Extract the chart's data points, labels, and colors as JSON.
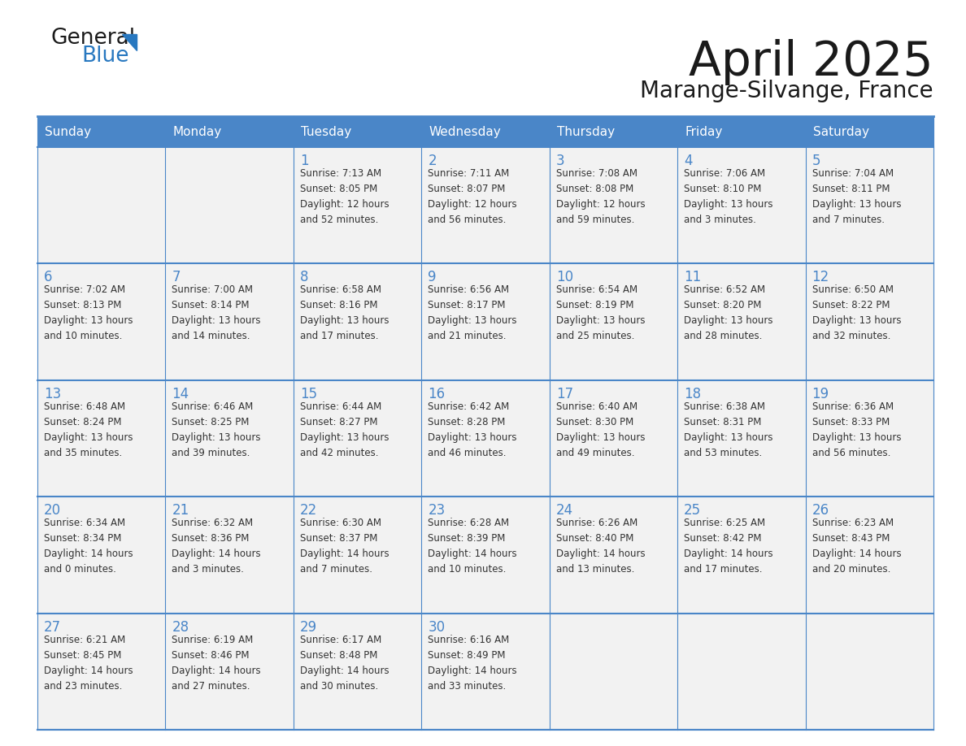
{
  "title": "April 2025",
  "subtitle": "Marange-Silvange, France",
  "header_bg": "#4a86c8",
  "header_text_color": "#ffffff",
  "cell_bg": "#f2f2f2",
  "cell_bg_white": "#ffffff",
  "day_number_color": "#4a86c8",
  "text_color": "#333333",
  "line_color": "#4a86c8",
  "logo_text_color": "#222222",
  "logo_blue_color": "#2878c0",
  "days_of_week": [
    "Sunday",
    "Monday",
    "Tuesday",
    "Wednesday",
    "Thursday",
    "Friday",
    "Saturday"
  ],
  "weeks": [
    [
      {
        "day": "",
        "info": ""
      },
      {
        "day": "",
        "info": ""
      },
      {
        "day": "1",
        "info": "Sunrise: 7:13 AM\nSunset: 8:05 PM\nDaylight: 12 hours\nand 52 minutes."
      },
      {
        "day": "2",
        "info": "Sunrise: 7:11 AM\nSunset: 8:07 PM\nDaylight: 12 hours\nand 56 minutes."
      },
      {
        "day": "3",
        "info": "Sunrise: 7:08 AM\nSunset: 8:08 PM\nDaylight: 12 hours\nand 59 minutes."
      },
      {
        "day": "4",
        "info": "Sunrise: 7:06 AM\nSunset: 8:10 PM\nDaylight: 13 hours\nand 3 minutes."
      },
      {
        "day": "5",
        "info": "Sunrise: 7:04 AM\nSunset: 8:11 PM\nDaylight: 13 hours\nand 7 minutes."
      }
    ],
    [
      {
        "day": "6",
        "info": "Sunrise: 7:02 AM\nSunset: 8:13 PM\nDaylight: 13 hours\nand 10 minutes."
      },
      {
        "day": "7",
        "info": "Sunrise: 7:00 AM\nSunset: 8:14 PM\nDaylight: 13 hours\nand 14 minutes."
      },
      {
        "day": "8",
        "info": "Sunrise: 6:58 AM\nSunset: 8:16 PM\nDaylight: 13 hours\nand 17 minutes."
      },
      {
        "day": "9",
        "info": "Sunrise: 6:56 AM\nSunset: 8:17 PM\nDaylight: 13 hours\nand 21 minutes."
      },
      {
        "day": "10",
        "info": "Sunrise: 6:54 AM\nSunset: 8:19 PM\nDaylight: 13 hours\nand 25 minutes."
      },
      {
        "day": "11",
        "info": "Sunrise: 6:52 AM\nSunset: 8:20 PM\nDaylight: 13 hours\nand 28 minutes."
      },
      {
        "day": "12",
        "info": "Sunrise: 6:50 AM\nSunset: 8:22 PM\nDaylight: 13 hours\nand 32 minutes."
      }
    ],
    [
      {
        "day": "13",
        "info": "Sunrise: 6:48 AM\nSunset: 8:24 PM\nDaylight: 13 hours\nand 35 minutes."
      },
      {
        "day": "14",
        "info": "Sunrise: 6:46 AM\nSunset: 8:25 PM\nDaylight: 13 hours\nand 39 minutes."
      },
      {
        "day": "15",
        "info": "Sunrise: 6:44 AM\nSunset: 8:27 PM\nDaylight: 13 hours\nand 42 minutes."
      },
      {
        "day": "16",
        "info": "Sunrise: 6:42 AM\nSunset: 8:28 PM\nDaylight: 13 hours\nand 46 minutes."
      },
      {
        "day": "17",
        "info": "Sunrise: 6:40 AM\nSunset: 8:30 PM\nDaylight: 13 hours\nand 49 minutes."
      },
      {
        "day": "18",
        "info": "Sunrise: 6:38 AM\nSunset: 8:31 PM\nDaylight: 13 hours\nand 53 minutes."
      },
      {
        "day": "19",
        "info": "Sunrise: 6:36 AM\nSunset: 8:33 PM\nDaylight: 13 hours\nand 56 minutes."
      }
    ],
    [
      {
        "day": "20",
        "info": "Sunrise: 6:34 AM\nSunset: 8:34 PM\nDaylight: 14 hours\nand 0 minutes."
      },
      {
        "day": "21",
        "info": "Sunrise: 6:32 AM\nSunset: 8:36 PM\nDaylight: 14 hours\nand 3 minutes."
      },
      {
        "day": "22",
        "info": "Sunrise: 6:30 AM\nSunset: 8:37 PM\nDaylight: 14 hours\nand 7 minutes."
      },
      {
        "day": "23",
        "info": "Sunrise: 6:28 AM\nSunset: 8:39 PM\nDaylight: 14 hours\nand 10 minutes."
      },
      {
        "day": "24",
        "info": "Sunrise: 6:26 AM\nSunset: 8:40 PM\nDaylight: 14 hours\nand 13 minutes."
      },
      {
        "day": "25",
        "info": "Sunrise: 6:25 AM\nSunset: 8:42 PM\nDaylight: 14 hours\nand 17 minutes."
      },
      {
        "day": "26",
        "info": "Sunrise: 6:23 AM\nSunset: 8:43 PM\nDaylight: 14 hours\nand 20 minutes."
      }
    ],
    [
      {
        "day": "27",
        "info": "Sunrise: 6:21 AM\nSunset: 8:45 PM\nDaylight: 14 hours\nand 23 minutes."
      },
      {
        "day": "28",
        "info": "Sunrise: 6:19 AM\nSunset: 8:46 PM\nDaylight: 14 hours\nand 27 minutes."
      },
      {
        "day": "29",
        "info": "Sunrise: 6:17 AM\nSunset: 8:48 PM\nDaylight: 14 hours\nand 30 minutes."
      },
      {
        "day": "30",
        "info": "Sunrise: 6:16 AM\nSunset: 8:49 PM\nDaylight: 14 hours\nand 33 minutes."
      },
      {
        "day": "",
        "info": ""
      },
      {
        "day": "",
        "info": ""
      },
      {
        "day": "",
        "info": ""
      }
    ]
  ],
  "figsize": [
    11.88,
    9.18
  ],
  "dpi": 100
}
